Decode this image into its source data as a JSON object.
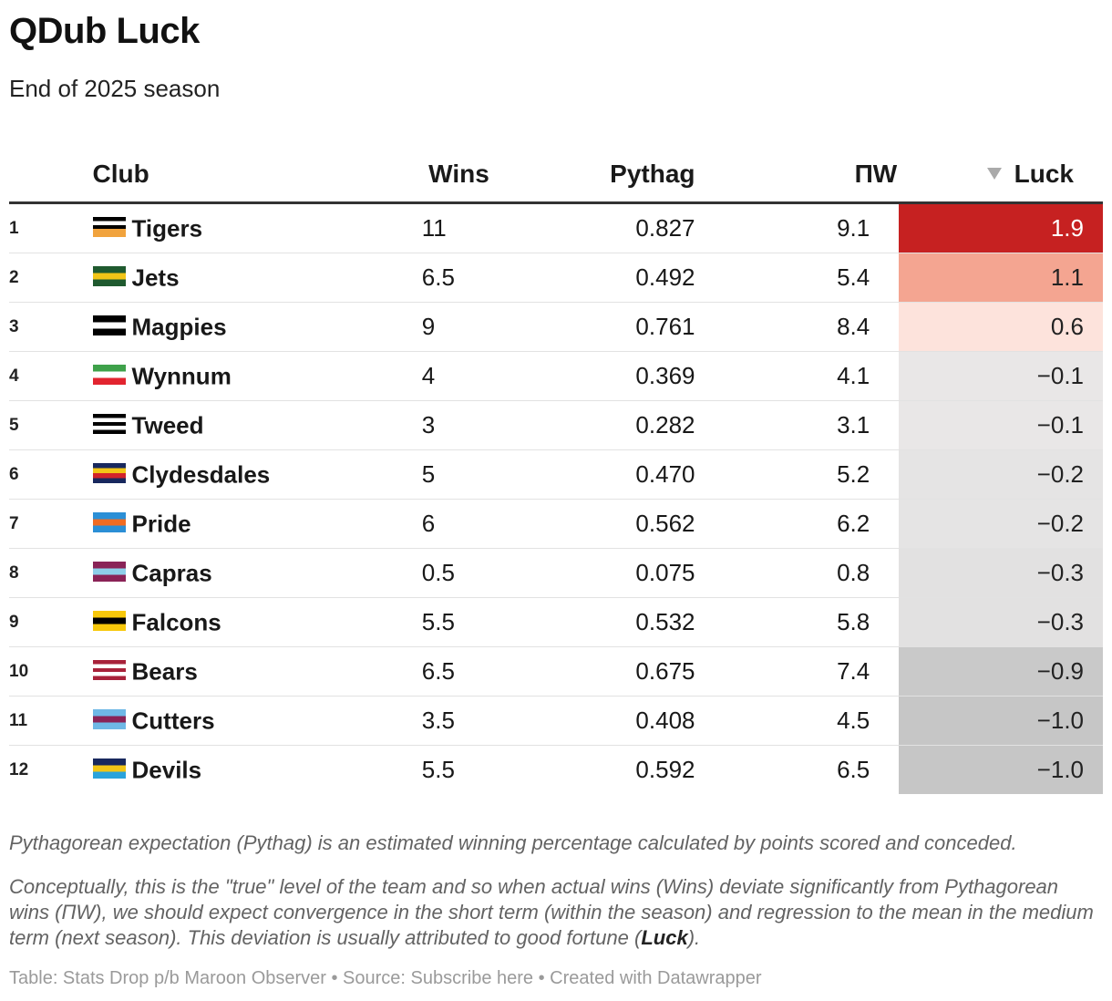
{
  "title": "QDub Luck",
  "subtitle": "End of 2025 season",
  "columns": {
    "club": "Club",
    "wins": "Wins",
    "pythag": "Pythag",
    "pw": "ΠW",
    "luck": "Luck"
  },
  "sort_icon": "sort-descending-triangle-icon",
  "rows": [
    {
      "rank": "1",
      "club": "Tigers",
      "wins": "11",
      "pythag": "0.827",
      "pw": "9.1",
      "luck": "1.9",
      "luck_color": "#c62121",
      "luck_text_color": "#ffffff",
      "flag": [
        "#000000",
        "#ffffff",
        "#000000",
        "#f1a33d",
        "#f1a33d"
      ]
    },
    {
      "rank": "2",
      "club": "Jets",
      "wins": "6.5",
      "pythag": "0.492",
      "pw": "5.4",
      "luck": "1.1",
      "luck_color": "#f4a591",
      "luck_text_color": "#222222",
      "flag": [
        "#1f5a2f",
        "#f2c517",
        "#1f5a2f"
      ]
    },
    {
      "rank": "3",
      "club": "Magpies",
      "wins": "9",
      "pythag": "0.761",
      "pw": "8.4",
      "luck": "0.6",
      "luck_color": "#fde3dc",
      "luck_text_color": "#222222",
      "flag": [
        "#000000",
        "#ffffff",
        "#000000"
      ]
    },
    {
      "rank": "4",
      "club": "Wynnum",
      "wins": "4",
      "pythag": "0.369",
      "pw": "4.1",
      "luck": "−0.1",
      "luck_color": "#e9e7e7",
      "luck_text_color": "#222222",
      "flag": [
        "#3ea14a",
        "#ffffff",
        "#e2242f"
      ]
    },
    {
      "rank": "5",
      "club": "Tweed",
      "wins": "3",
      "pythag": "0.282",
      "pw": "3.1",
      "luck": "−0.1",
      "luck_color": "#e9e7e7",
      "luck_text_color": "#222222",
      "flag": [
        "#000000",
        "#ffffff",
        "#000000",
        "#ffffff",
        "#000000"
      ]
    },
    {
      "rank": "6",
      "club": "Clydesdales",
      "wins": "5",
      "pythag": "0.470",
      "pw": "5.2",
      "luck": "−0.2",
      "luck_color": "#e5e4e4",
      "luck_text_color": "#222222",
      "flag": [
        "#18285e",
        "#f2c517",
        "#d2232a",
        "#18285e"
      ]
    },
    {
      "rank": "7",
      "club": "Pride",
      "wins": "6",
      "pythag": "0.562",
      "pw": "6.2",
      "luck": "−0.2",
      "luck_color": "#e5e4e4",
      "luck_text_color": "#222222",
      "flag": [
        "#2b8fd6",
        "#f06c23",
        "#2b8fd6"
      ]
    },
    {
      "rank": "8",
      "club": "Capras",
      "wins": "0.5",
      "pythag": "0.075",
      "pw": "0.8",
      "luck": "−0.3",
      "luck_color": "#e2e1e1",
      "luck_text_color": "#222222",
      "flag": [
        "#8a2357",
        "#8ecfe9",
        "#8a2357"
      ]
    },
    {
      "rank": "9",
      "club": "Falcons",
      "wins": "5.5",
      "pythag": "0.532",
      "pw": "5.8",
      "luck": "−0.3",
      "luck_color": "#e2e1e1",
      "luck_text_color": "#222222",
      "flag": [
        "#f7c80b",
        "#000000",
        "#f7c80b"
      ]
    },
    {
      "rank": "10",
      "club": "Bears",
      "wins": "6.5",
      "pythag": "0.675",
      "pw": "7.4",
      "luck": "−0.9",
      "luck_color": "#c9c9c9",
      "luck_text_color": "#222222",
      "flag": [
        "#a8223a",
        "#ffffff",
        "#a8223a",
        "#ffffff",
        "#a8223a"
      ]
    },
    {
      "rank": "11",
      "club": "Cutters",
      "wins": "3.5",
      "pythag": "0.408",
      "pw": "4.5",
      "luck": "−1.0",
      "luck_color": "#c6c6c6",
      "luck_text_color": "#222222",
      "flag": [
        "#6fb8e6",
        "#8a2357",
        "#6fb8e6"
      ]
    },
    {
      "rank": "12",
      "club": "Devils",
      "wins": "5.5",
      "pythag": "0.592",
      "pw": "6.5",
      "luck": "−1.0",
      "luck_color": "#c6c6c6",
      "luck_text_color": "#222222",
      "flag": [
        "#18285e",
        "#f2c517",
        "#2aa3dc"
      ]
    }
  ],
  "notes": {
    "p1": "Pythagorean expectation (Pythag) is an estimated winning percentage calculated by points scored and conceded.",
    "p2_pre": "Conceptually, this is the \"true\" level of the team and so when actual wins (Wins) deviate significantly from Pythagorean wins (ΠW), we should expect convergence in the short term (within the season) and regression to the mean in the medium term (next season). This deviation is usually attributed to good fortune (",
    "p2_bold": "Luck",
    "p2_post": ")."
  },
  "footer": "Table: Stats Drop p/b Maroon Observer • Source: Subscribe here • Created with Datawrapper"
}
